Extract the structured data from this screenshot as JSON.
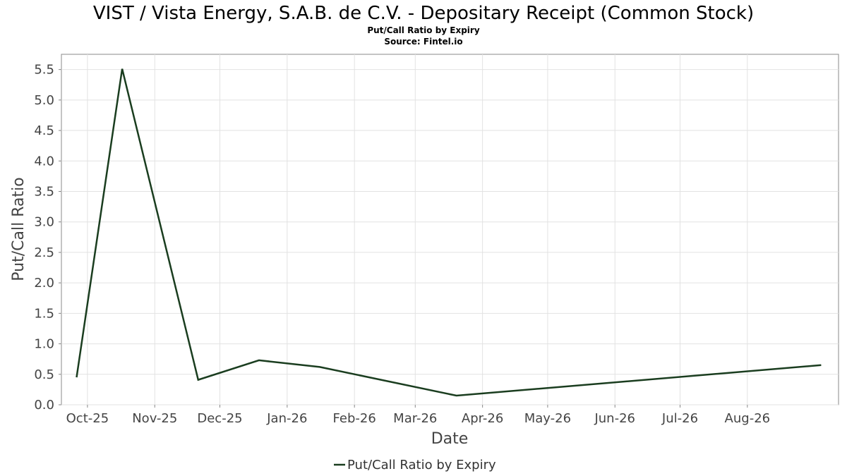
{
  "chart_data": {
    "type": "line",
    "title": "VIST / Vista Energy, S.A.B. de C.V. - Depositary Receipt (Common Stock)",
    "subtitle": "Put/Call Ratio by Expiry",
    "source": "Source: Fintel.io",
    "xlabel": "Date",
    "ylabel": "Put/Call Ratio",
    "x_ticks": [
      {
        "label": "Oct-25",
        "date": "2025-10-01"
      },
      {
        "label": "Nov-25",
        "date": "2025-11-01"
      },
      {
        "label": "Dec-25",
        "date": "2025-12-01"
      },
      {
        "label": "Jan-26",
        "date": "2026-01-01"
      },
      {
        "label": "Feb-26",
        "date": "2026-02-01"
      },
      {
        "label": "Mar-26",
        "date": "2026-03-01"
      },
      {
        "label": "Apr-26",
        "date": "2026-04-01"
      },
      {
        "label": "May-26",
        "date": "2026-05-01"
      },
      {
        "label": "Jun-26",
        "date": "2026-06-01"
      },
      {
        "label": "Jul-26",
        "date": "2026-07-01"
      },
      {
        "label": "Aug-26",
        "date": "2026-08-01"
      }
    ],
    "y_ticks": [
      "0.0",
      "0.5",
      "1.0",
      "1.5",
      "2.0",
      "2.5",
      "3.0",
      "3.5",
      "4.0",
      "4.5",
      "5.0",
      "5.5"
    ],
    "xlim": [
      "2025-09-19",
      "2026-09-12"
    ],
    "ylim": [
      0,
      5.75
    ],
    "grid": true,
    "legend_position": "bottom-center",
    "series": [
      {
        "name": "Put/Call Ratio by Expiry",
        "color": "#1a3d1f",
        "points": [
          {
            "x": "2025-09-26",
            "y": 0.45
          },
          {
            "x": "2025-10-17",
            "y": 5.51
          },
          {
            "x": "2025-11-21",
            "y": 0.41
          },
          {
            "x": "2025-12-19",
            "y": 0.73
          },
          {
            "x": "2026-01-16",
            "y": 0.62
          },
          {
            "x": "2026-03-20",
            "y": 0.15
          },
          {
            "x": "2026-09-04",
            "y": 0.65
          }
        ]
      }
    ]
  }
}
